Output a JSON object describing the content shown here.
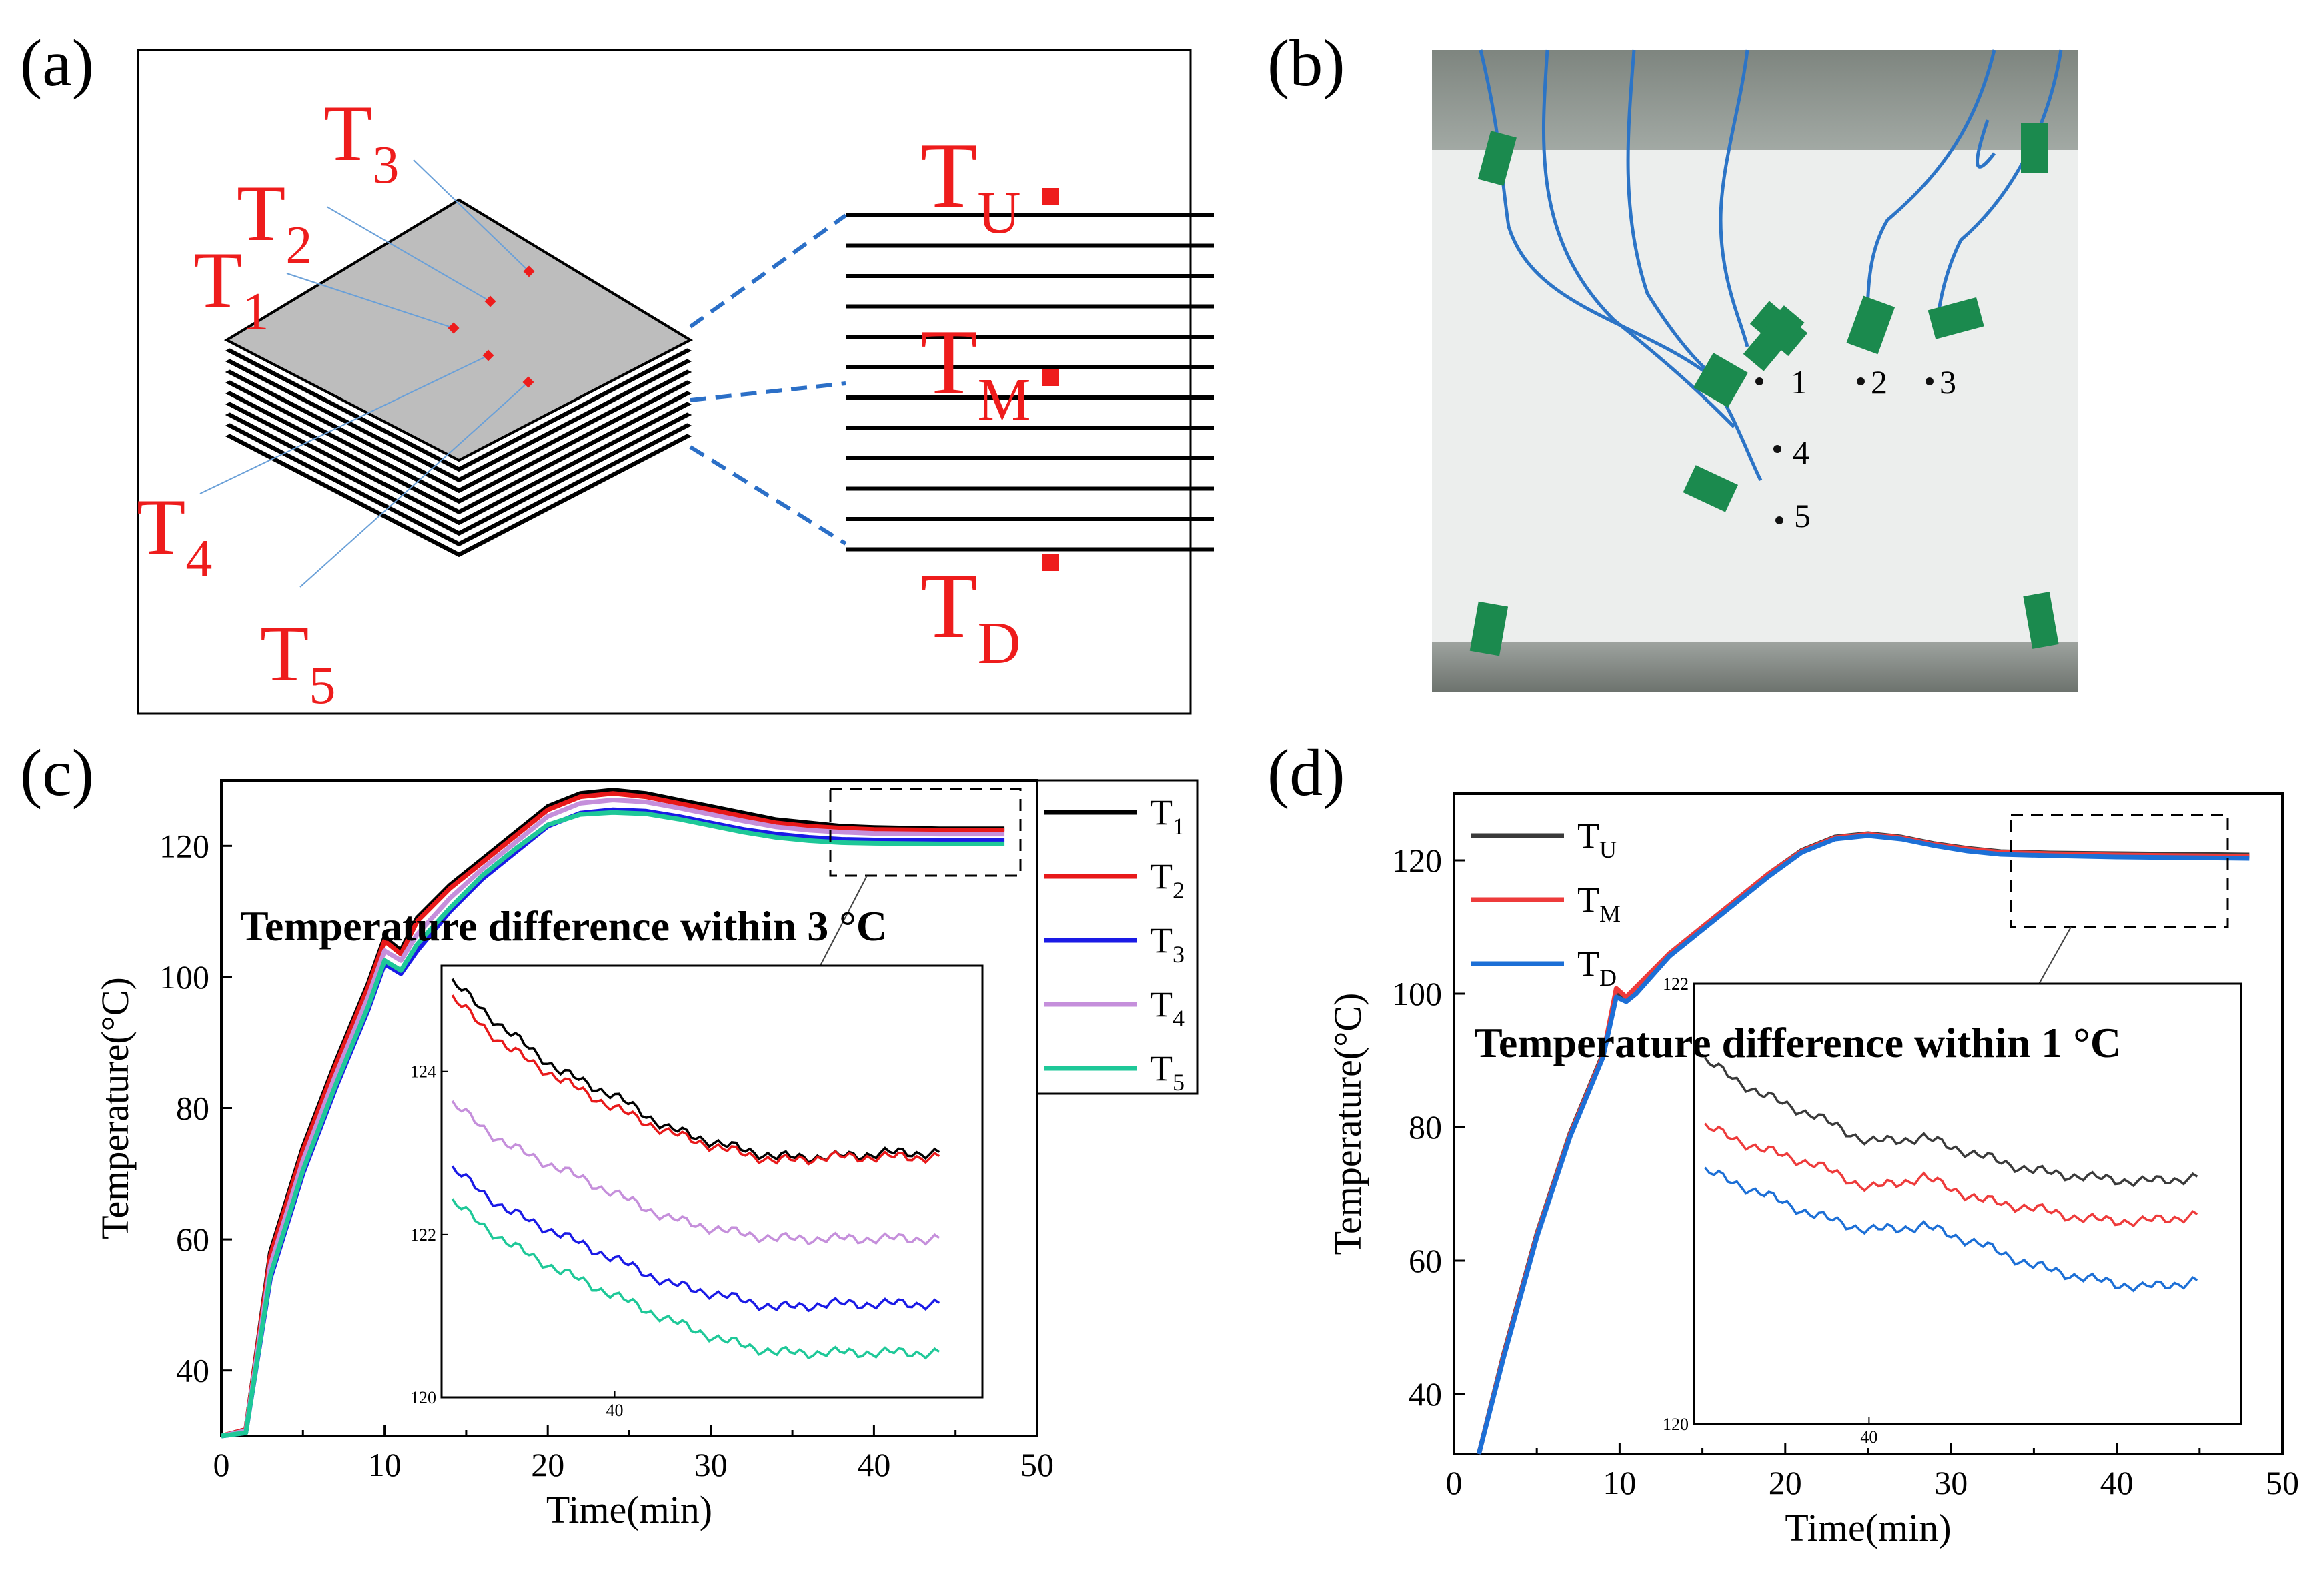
{
  "panels": {
    "a": "(a)",
    "b": "(b)",
    "c": "(c)",
    "d": "(d)"
  },
  "panel_a": {
    "stack_labels": [
      "T",
      "T",
      "T",
      "T",
      "T"
    ],
    "stack_subs": [
      "1",
      "2",
      "3",
      "4",
      "5"
    ],
    "layer_labels": [
      "T",
      "T",
      "T"
    ],
    "layer_subs": [
      "U",
      "M",
      "D"
    ],
    "color": "#ee1c1c"
  },
  "panel_b": {
    "marker_labels": [
      "1",
      "2",
      "3",
      "4",
      "5"
    ]
  },
  "chart_data": [
    {
      "type": "line",
      "xlabel": "Time(min)",
      "ylabel": "Temperature(°C)",
      "xlim": [
        0,
        50
      ],
      "ylim": [
        30,
        130
      ],
      "xticks": [
        0,
        10,
        20,
        30,
        40,
        50
      ],
      "yticks": [
        40,
        60,
        80,
        100,
        120
      ],
      "annotation": "Temperature difference within 3 °C",
      "legend_position": "right",
      "series": [
        {
          "name": "T1",
          "label": "T",
          "sub": "1",
          "color": "#000000",
          "x": [
            0,
            1.5,
            3,
            5,
            7,
            9,
            10,
            11,
            12,
            14,
            16,
            18,
            20,
            22,
            24,
            26,
            28,
            30,
            32,
            34,
            36,
            38,
            40,
            44,
            48
          ],
          "y": [
            30,
            31,
            58,
            74,
            87,
            99,
            106,
            104,
            109,
            114,
            118,
            122,
            126,
            128,
            128.5,
            128,
            127,
            126,
            125,
            124,
            123.5,
            123,
            122.8,
            122.6,
            122.6
          ]
        },
        {
          "name": "T2",
          "label": "T",
          "sub": "2",
          "color": "#e8191a",
          "x": [
            0,
            1.5,
            3,
            5,
            7,
            9,
            10,
            11,
            12,
            14,
            16,
            18,
            20,
            22,
            24,
            26,
            28,
            30,
            32,
            34,
            36,
            38,
            40,
            44,
            48
          ],
          "y": [
            30,
            31,
            57.5,
            73.5,
            86.5,
            98.5,
            105.5,
            103.5,
            108.5,
            113.5,
            117.5,
            121.5,
            125.5,
            127.5,
            128,
            127.5,
            126.5,
            125.5,
            124.5,
            123.5,
            123,
            122.7,
            122.5,
            122.4,
            122.4
          ]
        },
        {
          "name": "T3",
          "label": "T",
          "sub": "3",
          "color": "#1a1ae6",
          "x": [
            0,
            1.5,
            3,
            5,
            7,
            9,
            10,
            11,
            12,
            14,
            16,
            18,
            20,
            22,
            24,
            26,
            28,
            30,
            32,
            34,
            36,
            38,
            40,
            44,
            48
          ],
          "y": [
            30,
            30.5,
            54,
            70,
            83,
            95,
            102,
            100.5,
            104,
            110,
            115,
            119,
            123,
            125,
            125.5,
            125.3,
            124.5,
            123.5,
            122.5,
            121.8,
            121.3,
            121,
            120.9,
            120.9,
            120.9
          ]
        },
        {
          "name": "T4",
          "label": "T",
          "sub": "4",
          "color": "#c58fdb",
          "x": [
            0,
            1.5,
            3,
            5,
            7,
            9,
            10,
            11,
            12,
            14,
            16,
            18,
            20,
            22,
            24,
            26,
            28,
            30,
            32,
            34,
            36,
            38,
            40,
            44,
            48
          ],
          "y": [
            30,
            30.8,
            56,
            72,
            85,
            97,
            104,
            102.5,
            106.5,
            112,
            116.5,
            120.5,
            124.5,
            126.5,
            127,
            126.7,
            125.8,
            124.8,
            123.8,
            122.9,
            122.4,
            122.1,
            121.9,
            121.8,
            121.8
          ]
        },
        {
          "name": "T5",
          "label": "T",
          "sub": "5",
          "color": "#1ec898",
          "x": [
            0,
            1.5,
            3,
            5,
            7,
            9,
            10,
            11,
            12,
            14,
            16,
            18,
            20,
            22,
            24,
            26,
            28,
            30,
            32,
            34,
            36,
            38,
            40,
            44,
            48
          ],
          "y": [
            30,
            30.5,
            54.5,
            70.5,
            83.5,
            95.5,
            102.5,
            101,
            105,
            110.5,
            115.5,
            119.5,
            123.2,
            124.8,
            125.1,
            124.9,
            124.1,
            123.1,
            122.1,
            121.3,
            120.8,
            120.5,
            120.4,
            120.3,
            120.3
          ]
        }
      ],
      "inset": {
        "x": [
          37,
          38,
          39,
          40,
          41,
          42,
          43,
          44,
          45,
          46
        ],
        "ylim": [
          120,
          125.3
        ],
        "yticks": [
          120,
          122,
          124
        ],
        "xtick": 40,
        "series": [
          {
            "name": "T1",
            "color": "#000000",
            "y": [
              125.1,
              124.5,
              124.0,
              123.7,
              123.3,
              123.1,
              122.95,
              122.95,
              123.0,
              123.0
            ]
          },
          {
            "name": "T2",
            "color": "#e8191a",
            "y": [
              124.9,
              124.3,
              123.9,
              123.55,
              123.25,
              123.05,
              122.9,
              122.95,
              122.95,
              122.95
            ]
          },
          {
            "name": "T4",
            "color": "#c58fdb",
            "y": [
              123.6,
              123.1,
              122.8,
              122.5,
              122.2,
              122.05,
              121.95,
              121.95,
              121.95,
              121.95
            ]
          },
          {
            "name": "T3",
            "color": "#1a1ae6",
            "y": [
              122.8,
              122.3,
              122.0,
              121.7,
              121.4,
              121.25,
              121.1,
              121.15,
              121.15,
              121.15
            ]
          },
          {
            "name": "T5",
            "color": "#1ec898",
            "y": [
              122.4,
              121.9,
              121.55,
              121.25,
              120.95,
              120.7,
              120.55,
              120.55,
              120.55,
              120.55
            ]
          }
        ]
      }
    },
    {
      "type": "line",
      "xlabel": "Time(min)",
      "ylabel": "Temperature(°C)",
      "xlim": [
        0,
        50
      ],
      "ylim": [
        31,
        130
      ],
      "xticks": [
        0,
        10,
        20,
        30,
        40,
        50
      ],
      "yticks": [
        40,
        60,
        80,
        100,
        120
      ],
      "annotation": "Temperature difference within 1 °C",
      "legend_position": "top-left",
      "series": [
        {
          "name": "TU",
          "label": "T",
          "sub": "U",
          "color": "#3a3a3a",
          "x": [
            1.5,
            3,
            5,
            7,
            9,
            9.8,
            10.4,
            11,
            13,
            15,
            17,
            19,
            21,
            23,
            25,
            27,
            29,
            31,
            33,
            36,
            40,
            44,
            48
          ],
          "y": [
            31,
            46,
            64,
            79,
            91,
            100,
            99,
            100.5,
            106,
            110,
            114,
            118,
            121.5,
            123.5,
            124,
            123.5,
            122.5,
            121.8,
            121.3,
            121.1,
            121,
            120.9,
            120.8
          ]
        },
        {
          "name": "TM",
          "label": "T",
          "sub": "M",
          "color": "#ee3b3b",
          "x": [
            1.5,
            3,
            5,
            7,
            9,
            9.8,
            10.4,
            11,
            13,
            15,
            17,
            19,
            21,
            23,
            25,
            27,
            29,
            31,
            33,
            36,
            40,
            44,
            48
          ],
          "y": [
            31,
            45.8,
            63.8,
            78.8,
            90.8,
            100.8,
            99.5,
            101,
            106,
            110,
            114,
            118,
            121.4,
            123.4,
            123.9,
            123.4,
            122.4,
            121.7,
            121.2,
            121,
            120.8,
            120.7,
            120.6
          ]
        },
        {
          "name": "TD",
          "label": "T",
          "sub": "D",
          "color": "#1c6fd6",
          "x": [
            1.5,
            3,
            5,
            7,
            9,
            9.8,
            10.4,
            11,
            13,
            15,
            17,
            19,
            21,
            23,
            25,
            27,
            29,
            31,
            33,
            36,
            40,
            44,
            48
          ],
          "y": [
            31,
            45.5,
            63.5,
            78.5,
            90.5,
            99.5,
            98.8,
            100,
            105.6,
            109.6,
            113.6,
            117.6,
            121.2,
            123.2,
            123.7,
            123.2,
            122.2,
            121.4,
            120.9,
            120.7,
            120.5,
            120.4,
            120.3
          ]
        }
      ],
      "inset": {
        "x": [
          37,
          38,
          39,
          40,
          41,
          42,
          43,
          44,
          45,
          46
        ],
        "ylim": [
          120,
          122
        ],
        "yticks": [
          120,
          122
        ],
        "xtick": 40,
        "series": [
          {
            "name": "TU",
            "color": "#3a3a3a",
            "y": [
              121.65,
              121.5,
              121.4,
              121.28,
              121.3,
              121.22,
              121.15,
              121.12,
              121.1,
              121.12
            ]
          },
          {
            "name": "TM",
            "color": "#ee3b3b",
            "y": [
              121.35,
              121.25,
              121.18,
              121.07,
              121.12,
              121.02,
              120.98,
              120.93,
              120.92,
              120.95
            ]
          },
          {
            "name": "TD",
            "color": "#1c6fd6",
            "y": [
              121.15,
              121.05,
              120.95,
              120.88,
              120.9,
              120.82,
              120.72,
              120.66,
              120.62,
              120.65
            ]
          }
        ]
      }
    }
  ]
}
